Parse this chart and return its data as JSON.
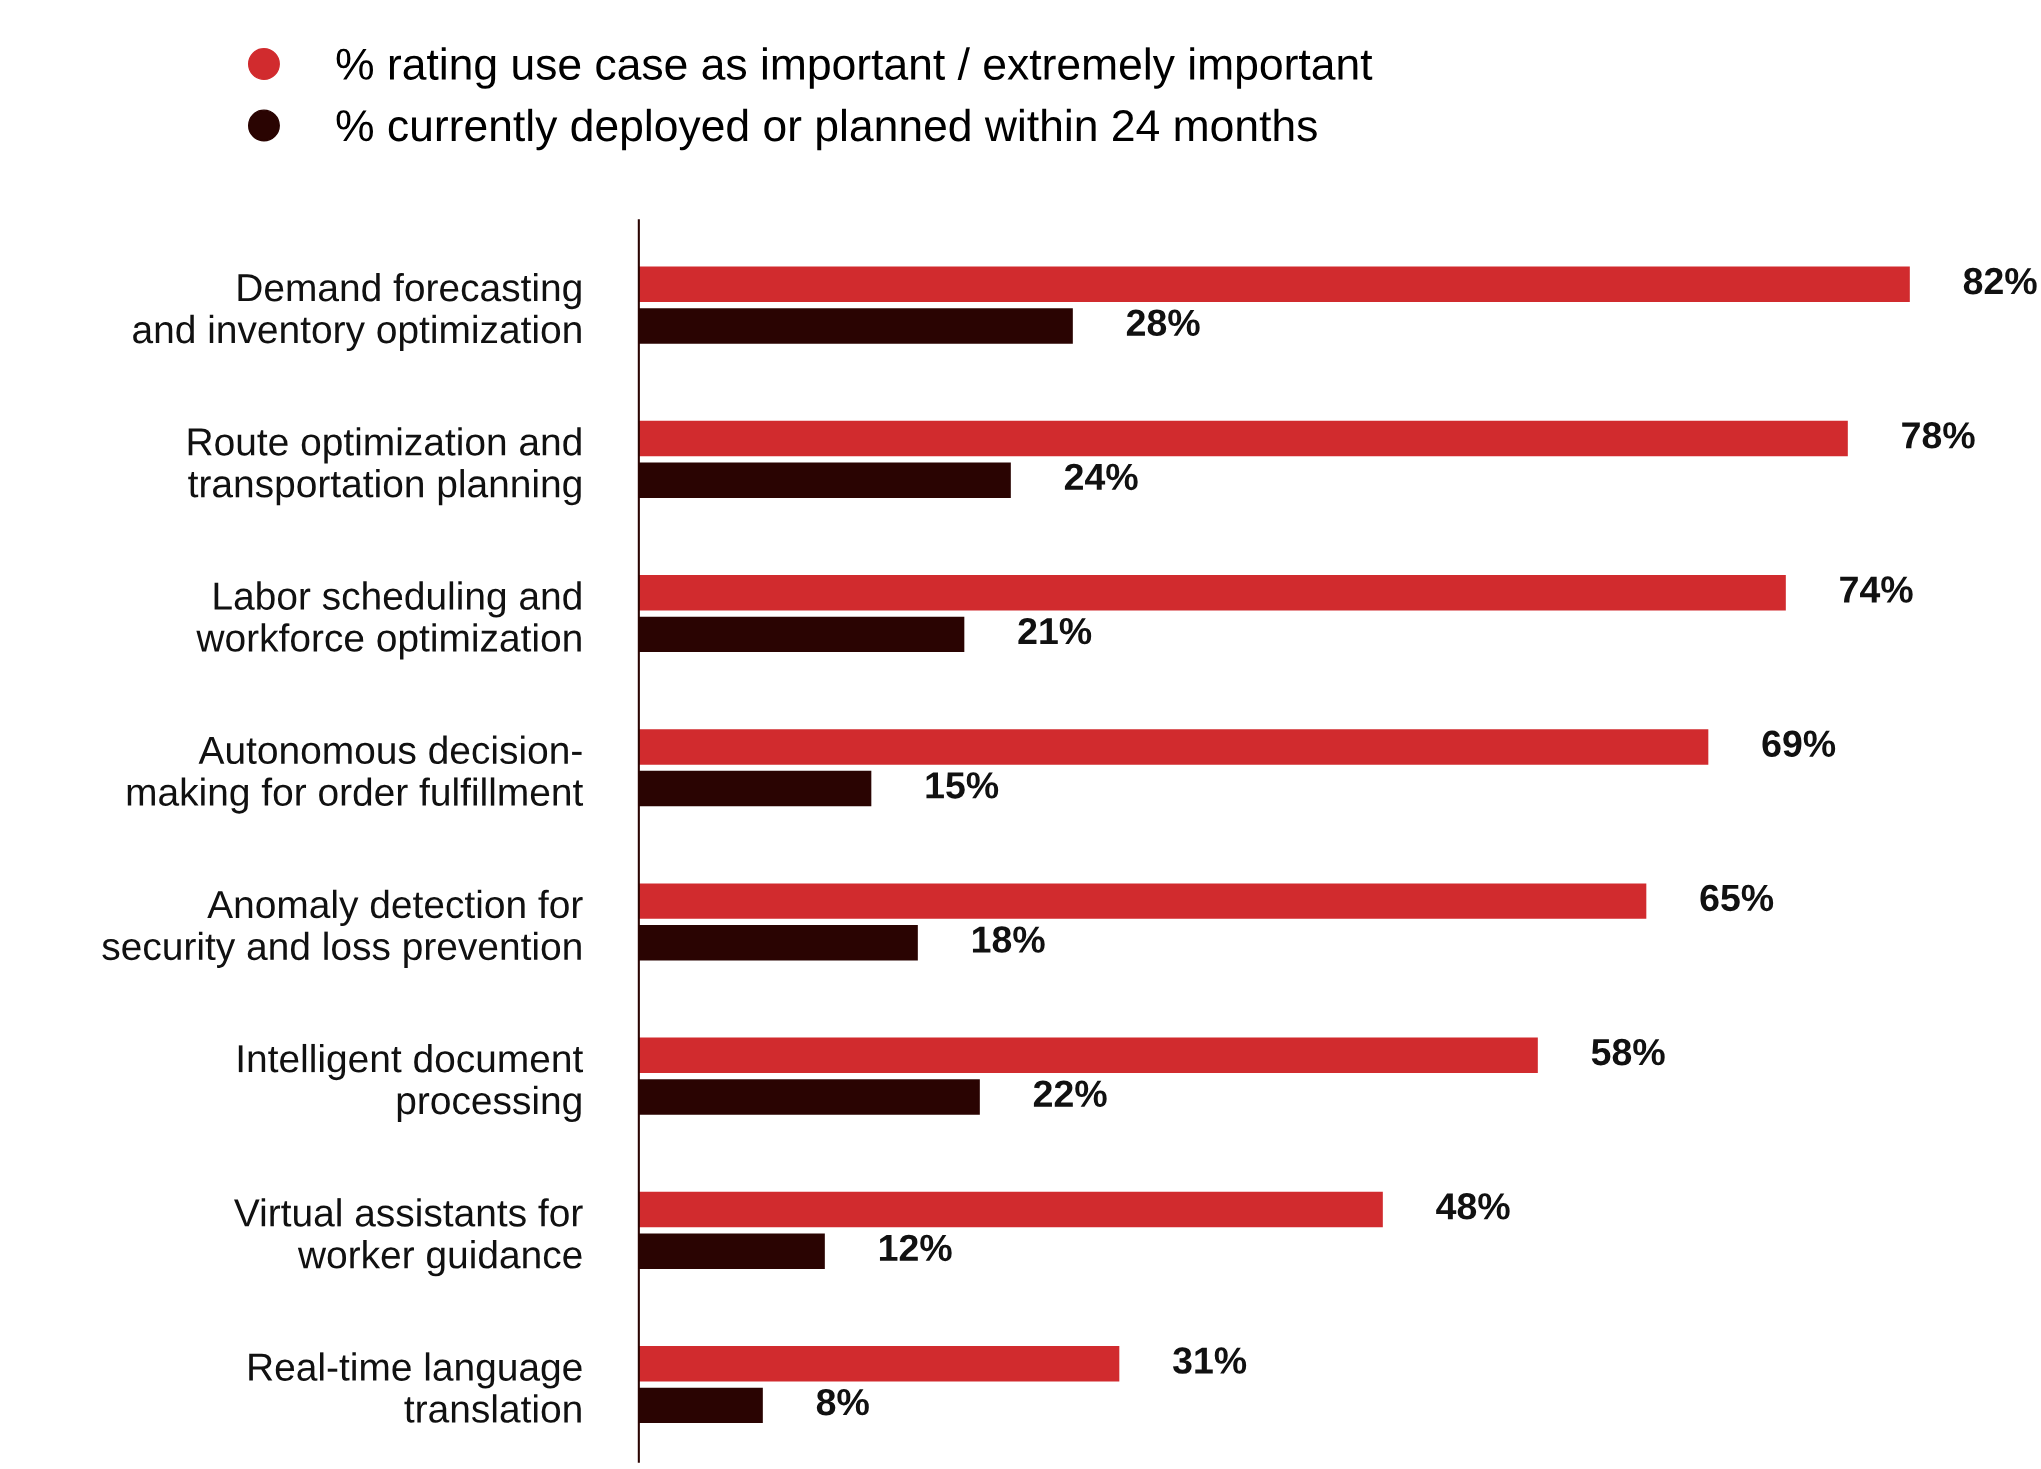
{
  "chart_data": {
    "type": "bar",
    "orientation": "horizontal",
    "categories": [
      "Demand forecasting\nand inventory optimization",
      "Route optimization and\ntransportation planning",
      "Labor scheduling and\nworkforce optimization",
      "Autonomous decision-\nmaking for order fulfillment",
      "Anomaly detection for\nsecurity and loss prevention",
      "Intelligent document\nprocessing",
      "Virtual assistants for\nworker guidance",
      "Real-time language\ntranslation"
    ],
    "series": [
      {
        "name": "% rating use case as important / extremely important",
        "color": "#d12b2e",
        "values": [
          82,
          78,
          74,
          69,
          65,
          58,
          48,
          31
        ],
        "value_labels": [
          "82%",
          "78%",
          "74%",
          "69%",
          "65%",
          "58%",
          "48%",
          "31%"
        ]
      },
      {
        "name": "% currently deployed or planned within 24 months",
        "color": "#2a0402",
        "values": [
          28,
          24,
          21,
          15,
          18,
          22,
          12,
          8
        ],
        "value_labels": [
          "28%",
          "24%",
          "21%",
          "15%",
          "18%",
          "22%",
          "12%",
          "8%"
        ]
      }
    ],
    "legend": "top",
    "grid": false
  }
}
